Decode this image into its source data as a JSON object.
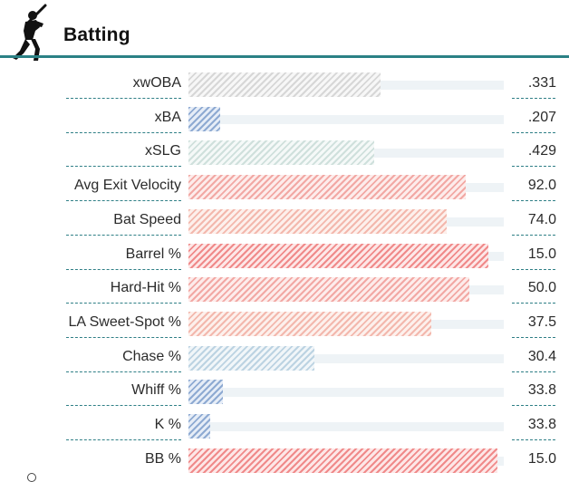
{
  "header": {
    "title": "Batting",
    "icon": "batter-silhouette-icon"
  },
  "colors": {
    "accent": "#2b8185",
    "red": "#f08a8a",
    "blue": "#8eaad2",
    "grey": "#d7d7d7"
  },
  "metrics": [
    {
      "label": "xwOBA",
      "value": ".331",
      "fraction": 0.61,
      "color": "grey"
    },
    {
      "label": "xBA",
      "value": ".207",
      "fraction": 0.1,
      "color": "blue"
    },
    {
      "label": "xSLG",
      "value": ".429",
      "fraction": 0.59,
      "color": "mint"
    },
    {
      "label": "Avg Exit Velocity",
      "value": "92.0",
      "fraction": 0.88,
      "color": "pink"
    },
    {
      "label": "Bat Speed",
      "value": "74.0",
      "fraction": 0.82,
      "color": "salmon"
    },
    {
      "label": "Barrel %",
      "value": "15.0",
      "fraction": 0.95,
      "color": "red"
    },
    {
      "label": "Hard-Hit %",
      "value": "50.0",
      "fraction": 0.89,
      "color": "pink"
    },
    {
      "label": "LA Sweet-Spot %",
      "value": "37.5",
      "fraction": 0.77,
      "color": "salmon"
    },
    {
      "label": "Chase %",
      "value": "30.4",
      "fraction": 0.4,
      "color": "lblue"
    },
    {
      "label": "Whiff %",
      "value": "33.8",
      "fraction": 0.11,
      "color": "blue"
    },
    {
      "label": "K %",
      "value": "33.8",
      "fraction": 0.07,
      "color": "blue"
    },
    {
      "label": "BB %",
      "value": "15.0",
      "fraction": 0.98,
      "color": "red"
    }
  ]
}
